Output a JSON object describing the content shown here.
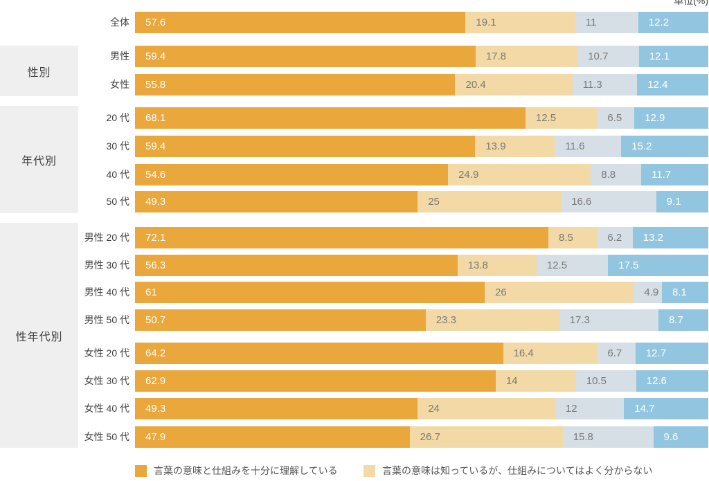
{
  "colors": {
    "group_box_bg": "#efefef",
    "label_text": "#404040",
    "legend_text": "#555555"
  },
  "chart_data": {
    "type": "bar",
    "orientation": "horizontal",
    "stacked": true,
    "unit_label": "単位(%)",
    "xlim": [
      0,
      100
    ],
    "grid": false,
    "legend_position": "bottom",
    "segment_colors": [
      "#E9A73C",
      "#F2D9A5",
      "#D5DFE5",
      "#92C5DF"
    ],
    "value_label_colors": [
      "#FFFFFF",
      "#7A7A7A",
      "#7A7A7A",
      "#FFFFFF"
    ],
    "legend": [
      {
        "label": "言葉の意味と仕組みを十分に理解している",
        "color": "#E9A73C"
      },
      {
        "label": "言葉の意味は知っているが、仕組みについてはよく分からない",
        "color": "#F2D9A5"
      }
    ],
    "groups": [
      {
        "name": "",
        "rows": [
          {
            "label": "全体",
            "values": [
              57.6,
              19.1,
              11,
              12.2
            ]
          }
        ]
      },
      {
        "name": "性別",
        "rows": [
          {
            "label": "男性",
            "values": [
              59.4,
              17.8,
              10.7,
              12.1
            ]
          },
          {
            "label": "女性",
            "values": [
              55.8,
              20.4,
              11.3,
              12.4
            ]
          }
        ]
      },
      {
        "name": "年代別",
        "rows": [
          {
            "label": "20 代",
            "values": [
              68.1,
              12.5,
              6.5,
              12.9
            ]
          },
          {
            "label": "30 代",
            "values": [
              59.4,
              13.9,
              11.6,
              15.2
            ]
          },
          {
            "label": "40 代",
            "values": [
              54.6,
              24.9,
              8.8,
              11.7
            ]
          },
          {
            "label": "50 代",
            "values": [
              49.3,
              25,
              16.6,
              9.1
            ]
          }
        ]
      },
      {
        "name": "性年代別",
        "rows": [
          {
            "label": "男性 20 代",
            "values": [
              72.1,
              8.5,
              6.2,
              13.2
            ]
          },
          {
            "label": "男性 30 代",
            "values": [
              56.3,
              13.8,
              12.5,
              17.5
            ]
          },
          {
            "label": "男性 40 代",
            "values": [
              61,
              26,
              4.9,
              8.1
            ]
          },
          {
            "label": "男性 50 代",
            "values": [
              50.7,
              23.3,
              17.3,
              8.7
            ]
          },
          {
            "label": "女性 20 代",
            "values": [
              64.2,
              16.4,
              6.7,
              12.7
            ]
          },
          {
            "label": "女性 30 代",
            "values": [
              62.9,
              14,
              10.5,
              12.6
            ]
          },
          {
            "label": "女性 40 代",
            "values": [
              49.3,
              24,
              12,
              14.7
            ]
          },
          {
            "label": "女性 50 代",
            "values": [
              47.9,
              26.7,
              15.8,
              9.6
            ]
          }
        ]
      }
    ]
  }
}
